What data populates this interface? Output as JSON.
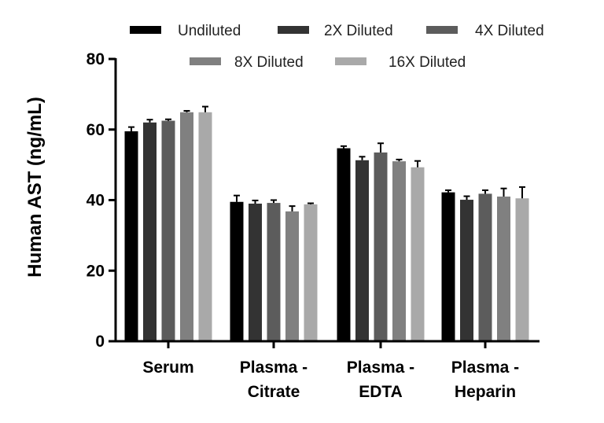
{
  "chart_data": {
    "type": "bar",
    "title": "",
    "xlabel": "",
    "ylabel": "Human AST (ng/mL)",
    "ylim": [
      0,
      80
    ],
    "yticks": [
      "0",
      "20",
      "40",
      "60",
      "80"
    ],
    "categories": [
      [
        "Serum"
      ],
      [
        "Plasma -",
        "Citrate"
      ],
      [
        "Plasma -",
        "EDTA"
      ],
      [
        "Plasma -",
        "Heparin"
      ]
    ],
    "legend_position": "top",
    "grid": false,
    "series": [
      {
        "name": "Undiluted",
        "color": "#000000",
        "values": [
          59.5,
          39.5,
          54.7,
          42.2
        ],
        "errors": [
          1.2,
          1.8,
          0.6,
          0.6
        ]
      },
      {
        "name": "2X Diluted",
        "color": "#333333",
        "values": [
          62.0,
          39.0,
          51.3,
          40.1
        ],
        "errors": [
          0.8,
          0.9,
          1.0,
          1.0
        ]
      },
      {
        "name": "4X Diluted",
        "color": "#5c5c5c",
        "values": [
          62.5,
          39.2,
          53.5,
          41.8
        ],
        "errors": [
          0.4,
          0.8,
          2.6,
          1.0
        ]
      },
      {
        "name": "8X Diluted",
        "color": "#808080",
        "values": [
          64.9,
          36.8,
          51.0,
          41.0
        ],
        "errors": [
          0.4,
          1.5,
          0.5,
          2.3
        ]
      },
      {
        "name": "16X Diluted",
        "color": "#a9a9a9",
        "values": [
          64.9,
          38.8,
          49.3,
          40.5
        ],
        "errors": [
          1.6,
          0.3,
          1.8,
          3.2
        ]
      }
    ]
  }
}
